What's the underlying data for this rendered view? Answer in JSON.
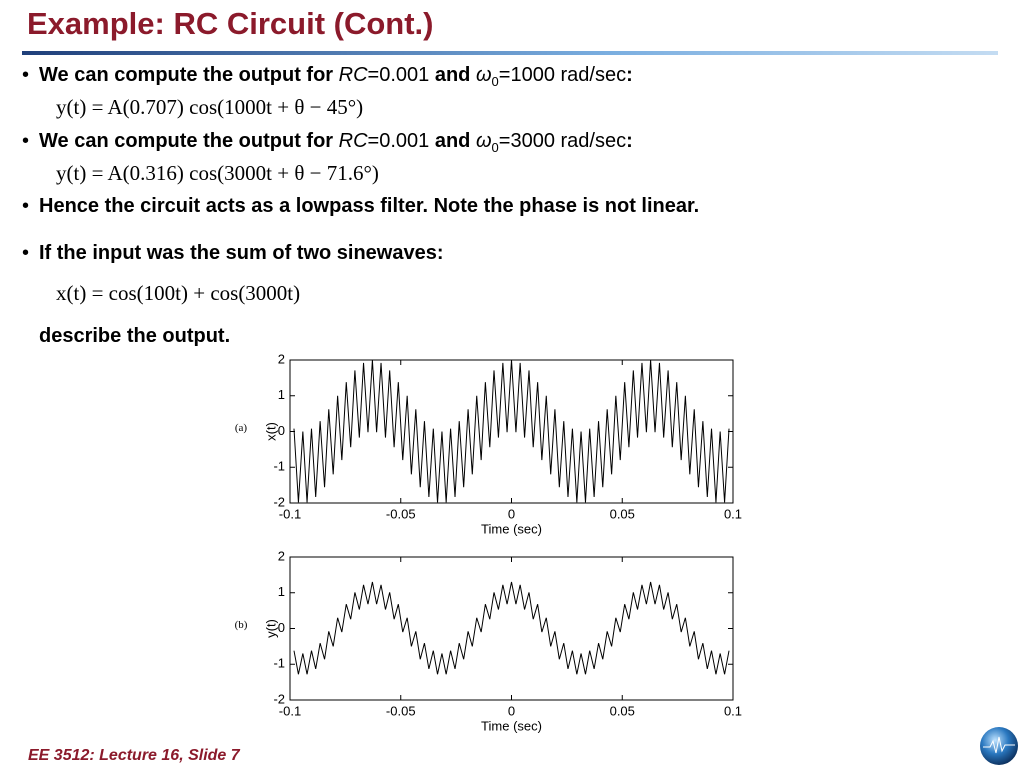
{
  "title": "Example: RC Circuit (Cont.)",
  "bullets": [
    {
      "parts": [
        "We can compute the output for ",
        "RC",
        "=0.001 ",
        "and ",
        "ω",
        "0",
        "=1000 rad/sec",
        ":"
      ],
      "equation": "y(t) = A(0.707) cos(1000t + θ − 45°)"
    },
    {
      "parts": [
        "We can compute the output for ",
        "RC",
        "=0.001 ",
        "and ",
        "ω",
        "0",
        "=3000 rad/sec",
        ":"
      ],
      "equation": "y(t) = A(0.316) cos(3000t + θ − 71.6°)"
    },
    {
      "parts": [
        "Hence the circuit acts as a lowpass filter. Note the phase is not linear."
      ]
    },
    {
      "parts": [
        "If the input was the sum of two sinewaves:"
      ],
      "equation": "x(t) = cos(100t) + cos(3000t)",
      "after": "describe the output."
    }
  ],
  "footer": "EE 3512: Lecture 16, Slide 7",
  "chart_data": [
    {
      "type": "line",
      "panel": "(a)",
      "xlabel": "Time (sec)",
      "ylabel": "x(t)",
      "color": "#000000",
      "xlim": [
        -0.1,
        0.1
      ],
      "xticks": [
        -0.1,
        -0.05,
        0,
        0.05,
        0.1
      ],
      "ylim": [
        -2,
        2
      ],
      "yticks": [
        -2,
        -1,
        0,
        1,
        2
      ],
      "x": [
        -0.0982,
        -0.0962,
        -0.0942,
        -0.0923,
        -0.0903,
        -0.0884,
        -0.0864,
        -0.0844,
        -0.0825,
        -0.0805,
        -0.0785,
        -0.0766,
        -0.0746,
        -0.0726,
        -0.0707,
        -0.0687,
        -0.0668,
        -0.0648,
        -0.0628,
        -0.0609,
        -0.0589,
        -0.0569,
        -0.055,
        -0.053,
        -0.0511,
        -0.0491,
        -0.0471,
        -0.0452,
        -0.0432,
        -0.0412,
        -0.0393,
        -0.0373,
        -0.0353,
        -0.0334,
        -0.0314,
        -0.0295,
        -0.0275,
        -0.0255,
        -0.0236,
        -0.0216,
        -0.0196,
        -0.0177,
        -0.0157,
        -0.0137,
        -0.0118,
        -0.0098,
        -0.0079,
        -0.0059,
        -0.0039,
        -0.002,
        0,
        0.002,
        0.0039,
        0.0059,
        0.0079,
        0.0098,
        0.0118,
        0.0137,
        0.0157,
        0.0177,
        0.0196,
        0.0216,
        0.0236,
        0.0255,
        0.0275,
        0.0295,
        0.0314,
        0.0334,
        0.0353,
        0.0373,
        0.0393,
        0.0412,
        0.0432,
        0.0452,
        0.0471,
        0.0491,
        0.0511,
        0.053,
        0.055,
        0.0569,
        0.0589,
        0.0609,
        0.0628,
        0.0648,
        0.0668,
        0.0687,
        0.0707,
        0.0726,
        0.0746,
        0.0766,
        0.0785,
        0.0805,
        0.0825,
        0.0844,
        0.0864,
        0.0884,
        0.0903,
        0.0923,
        0.0942,
        0.0962,
        0.0982
      ],
      "values": [
        0.08,
        -1.98,
        0,
        -1.98,
        0.08,
        -1.83,
        0.29,
        -1.56,
        0.62,
        -1.2,
        1,
        -0.8,
        1.38,
        -0.44,
        1.71,
        -0.17,
        1.92,
        -0.02,
        2,
        -0.02,
        1.92,
        -0.17,
        1.71,
        -0.44,
        1.38,
        -0.8,
        1,
        -1.2,
        0.62,
        -1.56,
        0.29,
        -1.83,
        0.08,
        -1.98,
        0,
        -1.98,
        0.08,
        -1.83,
        0.29,
        -1.56,
        0.62,
        -1.2,
        1,
        -0.8,
        1.38,
        -0.44,
        1.71,
        -0.17,
        1.92,
        -0.02,
        2,
        -0.02,
        1.92,
        -0.17,
        1.71,
        -0.44,
        1.38,
        -0.8,
        1,
        -1.2,
        0.62,
        -1.56,
        0.29,
        -1.83,
        0.08,
        -1.98,
        0,
        -1.98,
        0.08,
        -1.83,
        0.29,
        -1.56,
        0.62,
        -1.2,
        1,
        -0.8,
        1.38,
        -0.44,
        1.71,
        -0.17,
        1.92,
        -0.02,
        2,
        -0.02,
        1.92,
        -0.17,
        1.71,
        -0.44,
        1.38,
        -0.8,
        1,
        -1.2,
        0.62,
        -1.56,
        0.29,
        -1.83,
        0.08,
        -1.98,
        0,
        -1.98,
        0.08
      ]
    },
    {
      "type": "line",
      "panel": "(b)",
      "xlabel": "Time (sec)",
      "ylabel": "y(t)",
      "color": "#000000",
      "xlim": [
        -0.1,
        0.1
      ],
      "xticks": [
        -0.1,
        -0.05,
        0,
        0.05,
        0.1
      ],
      "ylim": [
        -2,
        2
      ],
      "yticks": [
        -2,
        -1,
        0,
        1,
        2
      ],
      "x": [
        -0.0982,
        -0.0962,
        -0.0942,
        -0.0923,
        -0.0903,
        -0.0884,
        -0.0864,
        -0.0844,
        -0.0825,
        -0.0805,
        -0.0785,
        -0.0766,
        -0.0746,
        -0.0726,
        -0.0707,
        -0.0687,
        -0.0668,
        -0.0648,
        -0.0628,
        -0.0609,
        -0.0589,
        -0.0569,
        -0.055,
        -0.053,
        -0.0511,
        -0.0491,
        -0.0471,
        -0.0452,
        -0.0432,
        -0.0412,
        -0.0393,
        -0.0373,
        -0.0353,
        -0.0334,
        -0.0314,
        -0.0295,
        -0.0275,
        -0.0255,
        -0.0236,
        -0.0216,
        -0.0196,
        -0.0177,
        -0.0157,
        -0.0137,
        -0.0118,
        -0.0098,
        -0.0079,
        -0.0059,
        -0.0039,
        -0.002,
        0,
        0.002,
        0.0039,
        0.0059,
        0.0079,
        0.0098,
        0.0118,
        0.0137,
        0.0157,
        0.0177,
        0.0196,
        0.0216,
        0.0236,
        0.0255,
        0.0275,
        0.0295,
        0.0314,
        0.0334,
        0.0353,
        0.0373,
        0.0393,
        0.0412,
        0.0432,
        0.0452,
        0.0471,
        0.0491,
        0.0511,
        0.053,
        0.055,
        0.0569,
        0.0589,
        0.0609,
        0.0628,
        0.0648,
        0.0668,
        0.0687,
        0.0707,
        0.0726,
        0.0746,
        0.0766,
        0.0785,
        0.0805,
        0.0825,
        0.0844,
        0.0864,
        0.0884,
        0.0903,
        0.0923,
        0.0942,
        0.0962,
        0.0982
      ],
      "values": [
        -0.62,
        -1.28,
        -0.7,
        -1.28,
        -0.62,
        -1.13,
        -0.41,
        -0.86,
        -0.08,
        -0.5,
        0.3,
        -0.1,
        0.68,
        0.26,
        1.01,
        0.53,
        1.22,
        0.68,
        1.3,
        0.68,
        1.22,
        0.53,
        1.01,
        0.26,
        0.68,
        -0.1,
        0.3,
        -0.5,
        -0.08,
        -0.86,
        -0.41,
        -1.13,
        -0.62,
        -1.28,
        -0.7,
        -1.28,
        -0.62,
        -1.13,
        -0.41,
        -0.86,
        -0.08,
        -0.5,
        0.3,
        -0.1,
        0.68,
        0.26,
        1.01,
        0.53,
        1.22,
        0.68,
        1.3,
        0.68,
        1.22,
        0.53,
        1.01,
        0.26,
        0.68,
        -0.1,
        0.3,
        -0.5,
        -0.08,
        -0.86,
        -0.41,
        -1.13,
        -0.62,
        -1.28,
        -0.7,
        -1.28,
        -0.62,
        -1.13,
        -0.41,
        -0.86,
        -0.08,
        -0.5,
        0.3,
        -0.1,
        0.68,
        0.26,
        1.01,
        0.53,
        1.22,
        0.68,
        1.3,
        0.68,
        1.22,
        0.53,
        1.01,
        0.26,
        0.68,
        -0.1,
        0.3,
        -0.5,
        -0.08,
        -0.86,
        -0.41,
        -1.13,
        -0.62,
        -1.28,
        -0.7,
        -1.28,
        -0.62
      ]
    }
  ]
}
